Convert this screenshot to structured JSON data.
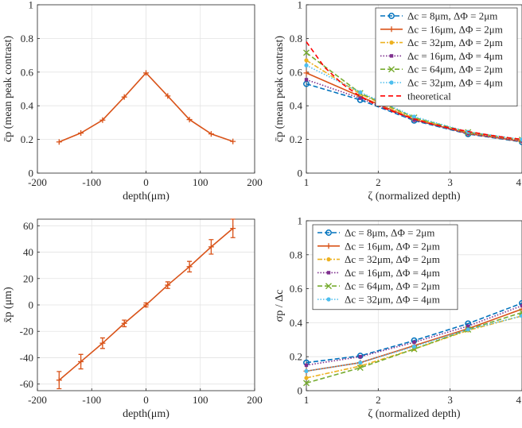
{
  "chart_data": [
    {
      "type": "line",
      "xlabel": "depth(μm)",
      "ylabel": "c̄p (mean peak contrast)",
      "xlim": [
        -200,
        200
      ],
      "ylim": [
        0,
        1
      ],
      "xticks": [
        "-200",
        "-100",
        "0",
        "100",
        "200"
      ],
      "yticks": [
        "0",
        "0.2",
        "0.4",
        "0.6",
        "0.8",
        "1"
      ],
      "grid": true,
      "series": [
        {
          "color": "#D95319",
          "marker": "plus",
          "x": [
            -160,
            -120,
            -80,
            -40,
            0,
            40,
            80,
            120,
            160
          ],
          "y": [
            0.185,
            0.238,
            0.315,
            0.452,
            0.595,
            0.458,
            0.318,
            0.233,
            0.188
          ]
        }
      ]
    },
    {
      "type": "line",
      "xlabel": "ζ (normalized depth)",
      "ylabel": "c̄p (mean peak contrast)",
      "xlim": [
        1,
        4
      ],
      "ylim": [
        0,
        1
      ],
      "xticks": [
        "1",
        "2",
        "3",
        "4"
      ],
      "yticks": [
        "0",
        "0.2",
        "0.4",
        "0.6",
        "0.8",
        "1"
      ],
      "grid": true,
      "legend_position": "top-right",
      "series": [
        {
          "name": "Δc =  8μm, ΔΦ = 2μm",
          "color": "#0072BD",
          "dash": "6,3",
          "marker": "circle",
          "x": [
            1,
            1.75,
            2.5,
            3.25,
            4
          ],
          "y": [
            0.53,
            0.435,
            0.312,
            0.232,
            0.185
          ]
        },
        {
          "name": "Δc =  16μm, ΔΦ = 2μm",
          "color": "#D95319",
          "dash": "",
          "marker": "plus",
          "x": [
            1,
            1.75,
            2.5,
            3.25,
            4
          ],
          "y": [
            0.595,
            0.455,
            0.318,
            0.235,
            0.188
          ]
        },
        {
          "name": "Δc =  32μm, ΔΦ = 2μm",
          "color": "#EDB120",
          "dash": "6,2,2,2",
          "marker": "dot",
          "x": [
            1,
            1.75,
            2.5,
            3.25,
            4
          ],
          "y": [
            0.67,
            0.47,
            0.325,
            0.24,
            0.195
          ]
        },
        {
          "name": "Δc =  16μm, ΔΦ = 4μm",
          "color": "#7E2F8E",
          "dash": "1.5,2",
          "marker": "square",
          "x": [
            1,
            1.75,
            2.5,
            3.25,
            4
          ],
          "y": [
            0.555,
            0.445,
            0.315,
            0.235,
            0.19
          ]
        },
        {
          "name": "Δc = 64μm, ΔΦ = 2μm",
          "color": "#77AC30",
          "dash": "6,3",
          "marker": "x",
          "x": [
            1,
            1.75,
            2.5,
            3.25,
            4
          ],
          "y": [
            0.715,
            0.475,
            0.33,
            0.243,
            0.198
          ]
        },
        {
          "name": "Δc =  32μm, ΔΦ = 4μm",
          "color": "#4DBEEE",
          "dash": "1.5,2",
          "marker": "dot",
          "x": [
            1,
            1.75,
            2.5,
            3.25,
            4
          ],
          "y": [
            0.64,
            0.48,
            0.335,
            0.245,
            0.2
          ]
        },
        {
          "name": "theoretical",
          "color": "#FF0000",
          "dash": "6,4",
          "marker": "none",
          "x": [
            1,
            1.25,
            1.5,
            1.75,
            2,
            2.25,
            2.5,
            2.75,
            3,
            3.25,
            3.5,
            3.75,
            4
          ],
          "y": [
            0.78,
            0.63,
            0.53,
            0.455,
            0.4,
            0.358,
            0.322,
            0.292,
            0.268,
            0.247,
            0.229,
            0.213,
            0.2
          ]
        }
      ]
    },
    {
      "type": "line",
      "xlabel": "depth(μm)",
      "ylabel": "x̄p (μm)",
      "xlim": [
        -200,
        200
      ],
      "ylim": [
        -65,
        65
      ],
      "xticks": [
        "-200",
        "-100",
        "0",
        "100",
        "200"
      ],
      "yticks": [
        "-60",
        "-40",
        "-20",
        "0",
        "20",
        "40",
        "60"
      ],
      "grid": true,
      "series": [
        {
          "color": "#D95319",
          "marker": "plus",
          "errorbars": true,
          "x": [
            -160,
            -120,
            -80,
            -40,
            0,
            40,
            80,
            120,
            160
          ],
          "y": [
            -57,
            -43,
            -29,
            -14,
            0,
            15,
            29,
            44,
            58
          ],
          "err": [
            6.5,
            5.5,
            4,
            2.5,
            1.5,
            2.5,
            4,
            5.5,
            7
          ]
        }
      ]
    },
    {
      "type": "line",
      "xlabel": "ζ (normalized depth)",
      "ylabel": "σp / Δc",
      "xlim": [
        1,
        4
      ],
      "ylim": [
        0,
        1
      ],
      "xticks": [
        "1",
        "2",
        "3",
        "4"
      ],
      "yticks": [
        "0",
        "0.2",
        "0.4",
        "0.6",
        "0.8",
        "1"
      ],
      "grid": true,
      "legend_position": "top-left",
      "series": [
        {
          "name": "Δc =  8μm, ΔΦ = 2μm",
          "color": "#0072BD",
          "dash": "6,3",
          "marker": "circle",
          "x": [
            1,
            1.75,
            2.5,
            3.25,
            4
          ],
          "y": [
            0.165,
            0.205,
            0.295,
            0.395,
            0.515
          ]
        },
        {
          "name": "Δc =  16μm, ΔΦ = 2μm",
          "color": "#D95319",
          "dash": "",
          "marker": "plus",
          "x": [
            1,
            1.75,
            2.5,
            3.25,
            4
          ],
          "y": [
            0.115,
            0.165,
            0.265,
            0.365,
            0.48
          ]
        },
        {
          "name": "Δc =  32μm, ΔΦ = 2μm",
          "color": "#EDB120",
          "dash": "6,2,2,2",
          "marker": "dot",
          "x": [
            1,
            1.75,
            2.5,
            3.25,
            4
          ],
          "y": [
            0.075,
            0.145,
            0.245,
            0.355,
            0.44
          ]
        },
        {
          "name": "Δc =  16μm, ΔΦ = 4μm",
          "color": "#7E2F8E",
          "dash": "1.5,2",
          "marker": "square",
          "x": [
            1,
            1.75,
            2.5,
            3.25,
            4
          ],
          "y": [
            0.15,
            0.2,
            0.285,
            0.38,
            0.5
          ]
        },
        {
          "name": "Δc = 64μm, ΔΦ = 2μm",
          "color": "#77AC30",
          "dash": "6,3",
          "marker": "x",
          "x": [
            1,
            1.75,
            2.5,
            3.25,
            4
          ],
          "y": [
            0.045,
            0.135,
            0.245,
            0.36,
            0.46
          ]
        },
        {
          "name": "Δc =  32μm, ΔΦ = 4μm",
          "color": "#4DBEEE",
          "dash": "1.5,2",
          "marker": "dot",
          "x": [
            1,
            1.75,
            2.5,
            3.25,
            4
          ],
          "y": [
            0.115,
            0.165,
            0.26,
            0.36,
            0.44
          ]
        }
      ]
    }
  ]
}
